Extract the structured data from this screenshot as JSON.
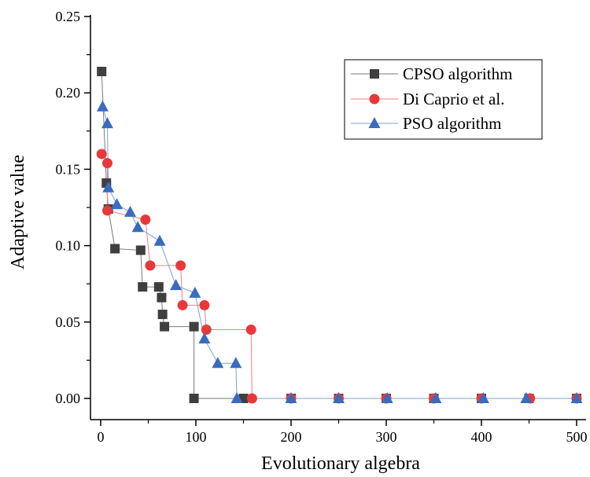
{
  "chart_data": {
    "type": "line",
    "title": "",
    "xlabel": "Evolutionary algebra",
    "ylabel": "Adaptive value",
    "xlim": [
      -10,
      505
    ],
    "ylim": [
      -0.013,
      0.25
    ],
    "xticks": [
      0,
      100,
      200,
      300,
      400,
      500
    ],
    "yticks": [
      0.0,
      0.05,
      0.1,
      0.15,
      0.2,
      0.25
    ],
    "xtick_labels": [
      "0",
      "100",
      "200",
      "300",
      "400",
      "500"
    ],
    "ytick_labels": [
      "0.00",
      "0.05",
      "0.10",
      "0.15",
      "0.20",
      "0.25"
    ],
    "grid": false,
    "legend_position": "top-right",
    "series": [
      {
        "name": "CPSO algorithm",
        "marker": "square",
        "color": "#3f3f3f",
        "line_color": "#7a7a7a",
        "x": [
          1,
          6,
          8,
          15,
          42,
          44,
          61,
          64,
          65,
          67,
          98,
          98,
          150,
          200,
          250,
          300,
          350,
          400,
          450,
          500
        ],
        "y": [
          0.214,
          0.141,
          0.124,
          0.098,
          0.097,
          0.073,
          0.073,
          0.066,
          0.055,
          0.047,
          0.047,
          0.0,
          0.0,
          0.0,
          0.0,
          0.0,
          0.0,
          0.0,
          0.0,
          0.0
        ]
      },
      {
        "name": "Di Caprio et al.",
        "marker": "circle",
        "color": "#e8393a",
        "line_color": "#f08080",
        "x": [
          1,
          7,
          7,
          47,
          52,
          84,
          86,
          109,
          111,
          158,
          159,
          200,
          250,
          300,
          350,
          400,
          451,
          500
        ],
        "y": [
          0.16,
          0.154,
          0.123,
          0.117,
          0.087,
          0.087,
          0.061,
          0.061,
          0.045,
          0.045,
          0.0,
          0.0,
          0.0,
          0.0,
          0.0,
          0.0,
          0.0,
          0.0
        ]
      },
      {
        "name": "PSO algorithm",
        "marker": "triangle",
        "color": "#3b6bbf",
        "line_color": "#7fa0d6",
        "x": [
          2,
          7,
          8,
          17,
          31,
          39,
          62,
          79,
          99,
          109,
          123,
          142,
          143,
          200,
          250,
          301,
          352,
          402,
          447,
          500
        ],
        "y": [
          0.191,
          0.18,
          0.138,
          0.127,
          0.122,
          0.112,
          0.103,
          0.074,
          0.069,
          0.039,
          0.023,
          0.023,
          0.0,
          0.0,
          0.0,
          0.0,
          0.0,
          0.0,
          0.0,
          0.0
        ]
      }
    ]
  }
}
